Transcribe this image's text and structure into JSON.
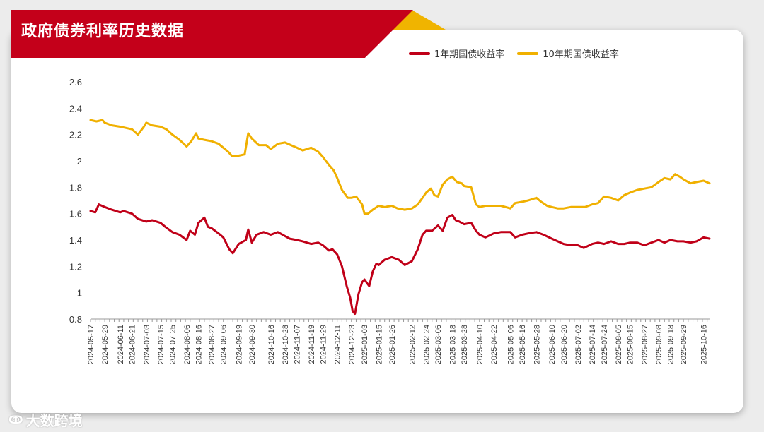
{
  "header": {
    "title": "政府债券利率历史数据"
  },
  "watermark": {
    "icon": "wave-logo-icon",
    "text": "大数跨境"
  },
  "colors": {
    "banner": "#c4001a",
    "accent": "#f0b400",
    "series1": "#c00018",
    "series2": "#f0b000"
  },
  "chart_data": {
    "type": "line",
    "title": "政府债券利率历史数据",
    "ylim": [
      0.8,
      2.6
    ],
    "yticks": [
      "0.8",
      "1",
      "1.2",
      "1.4",
      "1.6",
      "1.8",
      "2",
      "2.2",
      "2.4",
      "2.6"
    ],
    "grid": false,
    "legend_position": "top-right",
    "x_range": [
      "2024-05-17",
      "2025-10-21"
    ],
    "xticks": [
      "2024-05-17",
      "2024-05-29",
      "2024-06-11",
      "2024-06-21",
      "2024-07-03",
      "2024-07-15",
      "2024-07-25",
      "2024-08-06",
      "2024-08-16",
      "2024-08-27",
      "2024-09-06",
      "2024-09-19",
      "2024-09-30",
      "2024-10-16",
      "2024-10-28",
      "2024-11-07",
      "2024-11-19",
      "2024-11-29",
      "2024-12-11",
      "2024-12-23",
      "2025-01-03",
      "2025-01-15",
      "2025-01-26",
      "2025-02-12",
      "2025-02-24",
      "2025-03-06",
      "2025-03-18",
      "2025-03-28",
      "2025-04-10",
      "2025-04-22",
      "2025-05-06",
      "2025-05-16",
      "2025-05-28",
      "2025-06-10",
      "2025-06-20",
      "2025-07-02",
      "2025-07-14",
      "2025-07-24",
      "2025-08-05",
      "2025-08-15",
      "2025-08-27",
      "2025-09-08",
      "2025-09-18",
      "2025-09-29",
      "2025-10-16"
    ],
    "series": [
      {
        "name": "1年期国债收益率",
        "color": "#c00018",
        "points": [
          [
            "2024-05-17",
            1.62
          ],
          [
            "2024-05-21",
            1.61
          ],
          [
            "2024-05-24",
            1.67
          ],
          [
            "2024-05-29",
            1.65
          ],
          [
            "2024-06-04",
            1.63
          ],
          [
            "2024-06-11",
            1.61
          ],
          [
            "2024-06-14",
            1.62
          ],
          [
            "2024-06-21",
            1.6
          ],
          [
            "2024-06-26",
            1.56
          ],
          [
            "2024-07-03",
            1.54
          ],
          [
            "2024-07-08",
            1.55
          ],
          [
            "2024-07-15",
            1.53
          ],
          [
            "2024-07-19",
            1.5
          ],
          [
            "2024-07-25",
            1.46
          ],
          [
            "2024-07-31",
            1.44
          ],
          [
            "2024-08-06",
            1.4
          ],
          [
            "2024-08-09",
            1.47
          ],
          [
            "2024-08-13",
            1.44
          ],
          [
            "2024-08-16",
            1.53
          ],
          [
            "2024-08-21",
            1.57
          ],
          [
            "2024-08-24",
            1.5
          ],
          [
            "2024-08-27",
            1.49
          ],
          [
            "2024-09-02",
            1.45
          ],
          [
            "2024-09-06",
            1.42
          ],
          [
            "2024-09-11",
            1.33
          ],
          [
            "2024-09-14",
            1.3
          ],
          [
            "2024-09-19",
            1.37
          ],
          [
            "2024-09-25",
            1.4
          ],
          [
            "2024-09-27",
            1.48
          ],
          [
            "2024-09-30",
            1.38
          ],
          [
            "2024-10-04",
            1.44
          ],
          [
            "2024-10-10",
            1.46
          ],
          [
            "2024-10-16",
            1.44
          ],
          [
            "2024-10-22",
            1.46
          ],
          [
            "2024-10-28",
            1.43
          ],
          [
            "2024-11-01",
            1.41
          ],
          [
            "2024-11-07",
            1.4
          ],
          [
            "2024-11-12",
            1.39
          ],
          [
            "2024-11-19",
            1.37
          ],
          [
            "2024-11-25",
            1.38
          ],
          [
            "2024-11-29",
            1.36
          ],
          [
            "2024-12-04",
            1.32
          ],
          [
            "2024-12-07",
            1.33
          ],
          [
            "2024-12-11",
            1.29
          ],
          [
            "2024-12-15",
            1.2
          ],
          [
            "2024-12-19",
            1.05
          ],
          [
            "2024-12-22",
            0.96
          ],
          [
            "2024-12-24",
            0.86
          ],
          [
            "2024-12-26",
            0.84
          ],
          [
            "2024-12-29",
            0.99
          ],
          [
            "2025-01-01",
            1.08
          ],
          [
            "2025-01-03",
            1.1
          ],
          [
            "2025-01-07",
            1.05
          ],
          [
            "2025-01-10",
            1.16
          ],
          [
            "2025-01-13",
            1.22
          ],
          [
            "2025-01-15",
            1.21
          ],
          [
            "2025-01-20",
            1.25
          ],
          [
            "2025-01-26",
            1.27
          ],
          [
            "2025-02-01",
            1.25
          ],
          [
            "2025-02-06",
            1.21
          ],
          [
            "2025-02-12",
            1.24
          ],
          [
            "2025-02-17",
            1.33
          ],
          [
            "2025-02-21",
            1.44
          ],
          [
            "2025-02-24",
            1.47
          ],
          [
            "2025-03-01",
            1.47
          ],
          [
            "2025-03-06",
            1.51
          ],
          [
            "2025-03-10",
            1.47
          ],
          [
            "2025-03-14",
            1.57
          ],
          [
            "2025-03-18",
            1.59
          ],
          [
            "2025-03-21",
            1.55
          ],
          [
            "2025-03-24",
            1.54
          ],
          [
            "2025-03-28",
            1.52
          ],
          [
            "2025-04-03",
            1.53
          ],
          [
            "2025-04-07",
            1.47
          ],
          [
            "2025-04-10",
            1.44
          ],
          [
            "2025-04-15",
            1.42
          ],
          [
            "2025-04-22",
            1.45
          ],
          [
            "2025-04-28",
            1.46
          ],
          [
            "2025-05-06",
            1.46
          ],
          [
            "2025-05-10",
            1.42
          ],
          [
            "2025-05-16",
            1.44
          ],
          [
            "2025-05-21",
            1.45
          ],
          [
            "2025-05-28",
            1.46
          ],
          [
            "2025-06-03",
            1.44
          ],
          [
            "2025-06-10",
            1.41
          ],
          [
            "2025-06-15",
            1.39
          ],
          [
            "2025-06-20",
            1.37
          ],
          [
            "2025-06-26",
            1.36
          ],
          [
            "2025-07-02",
            1.36
          ],
          [
            "2025-07-07",
            1.34
          ],
          [
            "2025-07-14",
            1.37
          ],
          [
            "2025-07-19",
            1.38
          ],
          [
            "2025-07-24",
            1.37
          ],
          [
            "2025-07-30",
            1.39
          ],
          [
            "2025-08-05",
            1.37
          ],
          [
            "2025-08-10",
            1.37
          ],
          [
            "2025-08-15",
            1.38
          ],
          [
            "2025-08-21",
            1.38
          ],
          [
            "2025-08-27",
            1.36
          ],
          [
            "2025-09-02",
            1.38
          ],
          [
            "2025-09-08",
            1.4
          ],
          [
            "2025-09-13",
            1.38
          ],
          [
            "2025-09-18",
            1.4
          ],
          [
            "2025-09-24",
            1.39
          ],
          [
            "2025-09-29",
            1.39
          ],
          [
            "2025-10-05",
            1.38
          ],
          [
            "2025-10-10",
            1.39
          ],
          [
            "2025-10-16",
            1.42
          ],
          [
            "2025-10-21",
            1.41
          ]
        ]
      },
      {
        "name": "10年期国债收益率",
        "color": "#f0b000",
        "points": [
          [
            "2024-05-17",
            2.31
          ],
          [
            "2024-05-22",
            2.3
          ],
          [
            "2024-05-27",
            2.31
          ],
          [
            "2024-05-29",
            2.29
          ],
          [
            "2024-06-04",
            2.27
          ],
          [
            "2024-06-11",
            2.26
          ],
          [
            "2024-06-16",
            2.25
          ],
          [
            "2024-06-21",
            2.24
          ],
          [
            "2024-06-26",
            2.2
          ],
          [
            "2024-07-01",
            2.26
          ],
          [
            "2024-07-03",
            2.29
          ],
          [
            "2024-07-08",
            2.27
          ],
          [
            "2024-07-15",
            2.26
          ],
          [
            "2024-07-20",
            2.24
          ],
          [
            "2024-07-25",
            2.2
          ],
          [
            "2024-07-31",
            2.16
          ],
          [
            "2024-08-06",
            2.11
          ],
          [
            "2024-08-10",
            2.15
          ],
          [
            "2024-08-14",
            2.21
          ],
          [
            "2024-08-16",
            2.17
          ],
          [
            "2024-08-21",
            2.16
          ],
          [
            "2024-08-27",
            2.15
          ],
          [
            "2024-09-02",
            2.13
          ],
          [
            "2024-09-06",
            2.1
          ],
          [
            "2024-09-10",
            2.07
          ],
          [
            "2024-09-13",
            2.04
          ],
          [
            "2024-09-19",
            2.04
          ],
          [
            "2024-09-24",
            2.05
          ],
          [
            "2024-09-27",
            2.21
          ],
          [
            "2024-09-30",
            2.17
          ],
          [
            "2024-10-06",
            2.12
          ],
          [
            "2024-10-12",
            2.12
          ],
          [
            "2024-10-16",
            2.09
          ],
          [
            "2024-10-22",
            2.13
          ],
          [
            "2024-10-28",
            2.14
          ],
          [
            "2024-11-02",
            2.12
          ],
          [
            "2024-11-07",
            2.1
          ],
          [
            "2024-11-12",
            2.08
          ],
          [
            "2024-11-19",
            2.1
          ],
          [
            "2024-11-25",
            2.07
          ],
          [
            "2024-11-29",
            2.03
          ],
          [
            "2024-12-04",
            1.97
          ],
          [
            "2024-12-08",
            1.93
          ],
          [
            "2024-12-11",
            1.87
          ],
          [
            "2024-12-15",
            1.78
          ],
          [
            "2024-12-20",
            1.72
          ],
          [
            "2024-12-23",
            1.72
          ],
          [
            "2024-12-27",
            1.73
          ],
          [
            "2025-01-01",
            1.67
          ],
          [
            "2025-01-03",
            1.6
          ],
          [
            "2025-01-06",
            1.6
          ],
          [
            "2025-01-10",
            1.63
          ],
          [
            "2025-01-15",
            1.66
          ],
          [
            "2025-01-20",
            1.65
          ],
          [
            "2025-01-26",
            1.66
          ],
          [
            "2025-01-31",
            1.64
          ],
          [
            "2025-02-06",
            1.63
          ],
          [
            "2025-02-12",
            1.64
          ],
          [
            "2025-02-17",
            1.67
          ],
          [
            "2025-02-21",
            1.72
          ],
          [
            "2025-02-24",
            1.76
          ],
          [
            "2025-02-28",
            1.79
          ],
          [
            "2025-03-03",
            1.74
          ],
          [
            "2025-03-06",
            1.73
          ],
          [
            "2025-03-10",
            1.82
          ],
          [
            "2025-03-14",
            1.86
          ],
          [
            "2025-03-18",
            1.88
          ],
          [
            "2025-03-22",
            1.84
          ],
          [
            "2025-03-26",
            1.83
          ],
          [
            "2025-03-28",
            1.81
          ],
          [
            "2025-04-03",
            1.8
          ],
          [
            "2025-04-07",
            1.67
          ],
          [
            "2025-04-10",
            1.65
          ],
          [
            "2025-04-15",
            1.66
          ],
          [
            "2025-04-22",
            1.66
          ],
          [
            "2025-04-28",
            1.66
          ],
          [
            "2025-05-06",
            1.64
          ],
          [
            "2025-05-10",
            1.68
          ],
          [
            "2025-05-16",
            1.69
          ],
          [
            "2025-05-21",
            1.7
          ],
          [
            "2025-05-28",
            1.72
          ],
          [
            "2025-06-01",
            1.69
          ],
          [
            "2025-06-06",
            1.66
          ],
          [
            "2025-06-10",
            1.65
          ],
          [
            "2025-06-15",
            1.64
          ],
          [
            "2025-06-20",
            1.64
          ],
          [
            "2025-06-26",
            1.65
          ],
          [
            "2025-07-02",
            1.65
          ],
          [
            "2025-07-08",
            1.65
          ],
          [
            "2025-07-14",
            1.67
          ],
          [
            "2025-07-19",
            1.68
          ],
          [
            "2025-07-24",
            1.73
          ],
          [
            "2025-07-30",
            1.72
          ],
          [
            "2025-08-05",
            1.7
          ],
          [
            "2025-08-10",
            1.74
          ],
          [
            "2025-08-15",
            1.76
          ],
          [
            "2025-08-21",
            1.78
          ],
          [
            "2025-08-27",
            1.79
          ],
          [
            "2025-09-02",
            1.8
          ],
          [
            "2025-09-08",
            1.84
          ],
          [
            "2025-09-13",
            1.87
          ],
          [
            "2025-09-18",
            1.86
          ],
          [
            "2025-09-22",
            1.9
          ],
          [
            "2025-09-26",
            1.88
          ],
          [
            "2025-09-29",
            1.86
          ],
          [
            "2025-10-05",
            1.83
          ],
          [
            "2025-10-10",
            1.84
          ],
          [
            "2025-10-16",
            1.85
          ],
          [
            "2025-10-21",
            1.83
          ]
        ]
      }
    ]
  }
}
